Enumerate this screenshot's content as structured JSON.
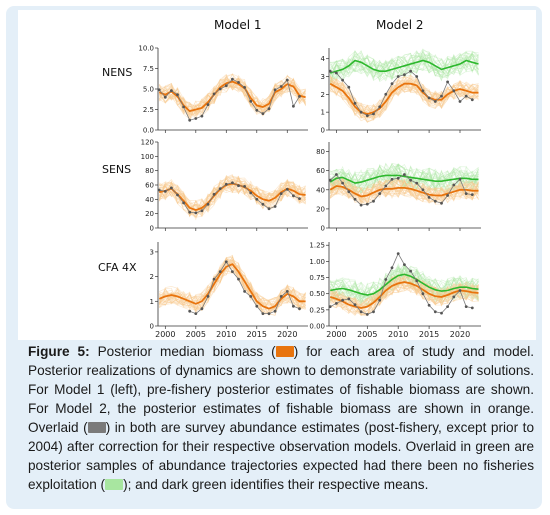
{
  "figure": {
    "col_titles": [
      "Model 1",
      "Model 2"
    ],
    "row_labels": [
      "NENS",
      "SENS",
      "CFA 4X"
    ],
    "colors": {
      "orange": "#e8740e",
      "orange_light": "#f7c98c",
      "grey": "#7a7a7a",
      "green": "#2db82d",
      "green_light": "#a8e6a0",
      "panel_bg": "#e4eff8"
    }
  },
  "caption": {
    "label": "Figure 5:",
    "part1": " Posterior median biomass (",
    "part2": ") for each area of study and model. Posterior realizations of dynamics are shown to demonstrate variability of solutions. For Model 1 (left), pre-fishery posterior estimates of fishable biomass are shown. For Model 2, the posterior estimates of fishable biomass are shown in orange. Overlaid (",
    "part3": ") in both are survey abundance estimates (post-fishery, except prior to 2004) after correction for their respective observation models. Overlaid in green are posterior samples of abundance trajectories expected had there been no fisheries exploitation (",
    "part4": "); and dark green identifies their respective means."
  },
  "chart_data": [
    {
      "type": "line",
      "panel": "Model 1 NENS",
      "x": [
        1999,
        2000,
        2001,
        2002,
        2003,
        2004,
        2005,
        2006,
        2007,
        2008,
        2009,
        2010,
        2011,
        2012,
        2013,
        2014,
        2015,
        2016,
        2017,
        2018,
        2019,
        2020,
        2021,
        2022,
        2023
      ],
      "ylim": [
        0,
        10
      ],
      "yticks": [
        0.0,
        2.5,
        5.0,
        7.5,
        10.0
      ],
      "series": [
        {
          "role": "posterior median biomass",
          "values": [
            4.6,
            4.3,
            4.7,
            4.1,
            3.0,
            2.3,
            2.5,
            2.7,
            3.4,
            4.3,
            5.2,
            5.7,
            5.9,
            5.6,
            5.1,
            3.9,
            3.0,
            2.8,
            3.2,
            4.6,
            5.0,
            5.6,
            5.3,
            4.2,
            4.0
          ]
        },
        {
          "role": "survey abundance",
          "values": [
            4.9,
            4.0,
            4.8,
            4.3,
            2.8,
            1.2,
            1.4,
            1.7,
            3.1,
            4.4,
            5.0,
            5.4,
            6.2,
            5.8,
            5.2,
            3.5,
            2.4,
            2.0,
            2.6,
            4.9,
            5.3,
            6.1,
            2.9,
            4.1,
            null
          ]
        }
      ]
    },
    {
      "type": "line",
      "panel": "Model 2 NENS",
      "x": [
        1999,
        2000,
        2001,
        2002,
        2003,
        2004,
        2005,
        2006,
        2007,
        2008,
        2009,
        2010,
        2011,
        2012,
        2013,
        2014,
        2015,
        2016,
        2017,
        2018,
        2019,
        2020,
        2021,
        2022,
        2023
      ],
      "ylim": [
        0,
        4.6
      ],
      "yticks": [
        0,
        1,
        2,
        3,
        4
      ],
      "series": [
        {
          "role": "posterior median biomass",
          "values": [
            2.6,
            2.4,
            2.2,
            1.8,
            1.3,
            1.0,
            0.9,
            1.0,
            1.2,
            1.6,
            2.1,
            2.4,
            2.6,
            2.6,
            2.5,
            2.1,
            1.8,
            1.7,
            1.7,
            2.0,
            2.2,
            2.3,
            2.2,
            2.1,
            2.1
          ]
        },
        {
          "role": "no-fishing mean",
          "values": [
            3.2,
            3.3,
            3.4,
            3.6,
            3.9,
            3.8,
            3.6,
            3.4,
            3.3,
            3.3,
            3.4,
            3.5,
            3.6,
            3.7,
            3.8,
            3.9,
            3.8,
            3.6,
            3.4,
            3.5,
            3.6,
            3.7,
            3.9,
            3.8,
            3.7
          ]
        },
        {
          "role": "survey abundance",
          "values": [
            3.3,
            3.2,
            2.8,
            2.4,
            1.5,
            1.0,
            0.8,
            0.9,
            1.3,
            2.0,
            2.6,
            3.0,
            3.1,
            3.3,
            3.0,
            2.2,
            1.8,
            1.6,
            1.9,
            2.7,
            2.2,
            1.6,
            1.9,
            1.7,
            null
          ]
        }
      ]
    },
    {
      "type": "line",
      "panel": "Model 1 SENS",
      "x": [
        1999,
        2000,
        2001,
        2002,
        2003,
        2004,
        2005,
        2006,
        2007,
        2008,
        2009,
        2010,
        2011,
        2012,
        2013,
        2014,
        2015,
        2016,
        2017,
        2018,
        2019,
        2020,
        2021,
        2022,
        2023
      ],
      "ylim": [
        0,
        120
      ],
      "yticks": [
        0,
        20,
        40,
        60,
        80,
        100,
        120
      ],
      "series": [
        {
          "role": "posterior median biomass",
          "values": [
            50,
            52,
            55,
            47,
            38,
            28,
            25,
            28,
            35,
            45,
            54,
            60,
            62,
            60,
            57,
            52,
            45,
            40,
            38,
            42,
            50,
            55,
            52,
            47,
            46
          ]
        },
        {
          "role": "survey abundance",
          "values": [
            53,
            51,
            56,
            46,
            35,
            22,
            21,
            24,
            33,
            47,
            55,
            61,
            63,
            59,
            58,
            49,
            40,
            33,
            27,
            30,
            48,
            54,
            45,
            41,
            null
          ]
        }
      ]
    },
    {
      "type": "line",
      "panel": "Model 2 SENS",
      "x": [
        1999,
        2000,
        2001,
        2002,
        2003,
        2004,
        2005,
        2006,
        2007,
        2008,
        2009,
        2010,
        2011,
        2012,
        2013,
        2014,
        2015,
        2016,
        2017,
        2018,
        2019,
        2020,
        2021,
        2022,
        2023
      ],
      "ylim": [
        0,
        90
      ],
      "yticks": [
        0,
        20,
        40,
        60,
        80
      ],
      "series": [
        {
          "role": "posterior median biomass",
          "values": [
            40,
            44,
            43,
            40,
            36,
            33,
            34,
            37,
            40,
            41,
            41,
            42,
            42,
            41,
            39,
            37,
            35,
            34,
            34,
            36,
            38,
            40,
            40,
            39,
            39
          ]
        },
        {
          "role": "no-fishing mean",
          "values": [
            48,
            52,
            53,
            50,
            47,
            48,
            50,
            52,
            54,
            55,
            55,
            55,
            54,
            53,
            52,
            51,
            50,
            49,
            49,
            50,
            51,
            52,
            52,
            51,
            51
          ]
        },
        {
          "role": "survey abundance",
          "values": [
            50,
            56,
            47,
            38,
            30,
            24,
            25,
            28,
            36,
            44,
            51,
            52,
            56,
            50,
            47,
            40,
            32,
            28,
            26,
            34,
            45,
            51,
            36,
            35,
            null
          ]
        }
      ]
    },
    {
      "type": "line",
      "panel": "Model 1 CFA 4X",
      "x": [
        1999,
        2000,
        2001,
        2002,
        2003,
        2004,
        2005,
        2006,
        2007,
        2008,
        2009,
        2010,
        2011,
        2012,
        2013,
        2014,
        2015,
        2016,
        2017,
        2018,
        2019,
        2020,
        2021,
        2022,
        2023
      ],
      "ylim": [
        0,
        3.4
      ],
      "yticks": [
        0,
        1,
        2,
        3
      ],
      "series": [
        {
          "role": "posterior median biomass",
          "values": [
            1.1,
            1.2,
            1.25,
            1.2,
            1.1,
            1.0,
            0.9,
            1.0,
            1.3,
            1.7,
            2.1,
            2.4,
            2.5,
            2.2,
            1.8,
            1.4,
            1.0,
            0.8,
            0.7,
            0.8,
            1.1,
            1.3,
            1.2,
            1.0,
            1.0
          ]
        },
        {
          "role": "survey abundance",
          "values": [
            null,
            null,
            null,
            null,
            null,
            0.6,
            0.5,
            0.7,
            1.2,
            1.9,
            2.2,
            2.6,
            2.2,
            1.9,
            1.4,
            1.2,
            0.8,
            0.5,
            0.5,
            0.6,
            1.2,
            1.4,
            0.8,
            0.7,
            null
          ]
        }
      ]
    },
    {
      "type": "line",
      "panel": "Model 2 CFA 4X",
      "x": [
        1999,
        2000,
        2001,
        2002,
        2003,
        2004,
        2005,
        2006,
        2007,
        2008,
        2009,
        2010,
        2011,
        2012,
        2013,
        2014,
        2015,
        2016,
        2017,
        2018,
        2019,
        2020,
        2021,
        2022,
        2023
      ],
      "ylim": [
        0,
        1.3
      ],
      "yticks": [
        0.0,
        0.25,
        0.5,
        0.75,
        1.0,
        1.25
      ],
      "series": [
        {
          "role": "posterior median biomass",
          "values": [
            0.45,
            0.42,
            0.38,
            0.33,
            0.3,
            0.28,
            0.3,
            0.36,
            0.45,
            0.55,
            0.62,
            0.66,
            0.68,
            0.66,
            0.62,
            0.56,
            0.5,
            0.46,
            0.45,
            0.48,
            0.52,
            0.55,
            0.54,
            0.52,
            0.51
          ]
        },
        {
          "role": "no-fishing mean",
          "values": [
            0.55,
            0.57,
            0.58,
            0.56,
            0.53,
            0.5,
            0.48,
            0.5,
            0.56,
            0.64,
            0.72,
            0.78,
            0.8,
            0.77,
            0.72,
            0.66,
            0.6,
            0.56,
            0.54,
            0.55,
            0.58,
            0.6,
            0.6,
            0.58,
            0.57
          ]
        },
        {
          "role": "survey abundance",
          "values": [
            0.3,
            0.35,
            0.4,
            0.42,
            0.33,
            0.22,
            0.18,
            0.22,
            0.4,
            0.72,
            0.9,
            1.12,
            0.95,
            0.85,
            0.7,
            0.5,
            0.32,
            0.22,
            0.2,
            0.3,
            0.45,
            0.55,
            0.3,
            0.28,
            null
          ]
        }
      ]
    }
  ]
}
